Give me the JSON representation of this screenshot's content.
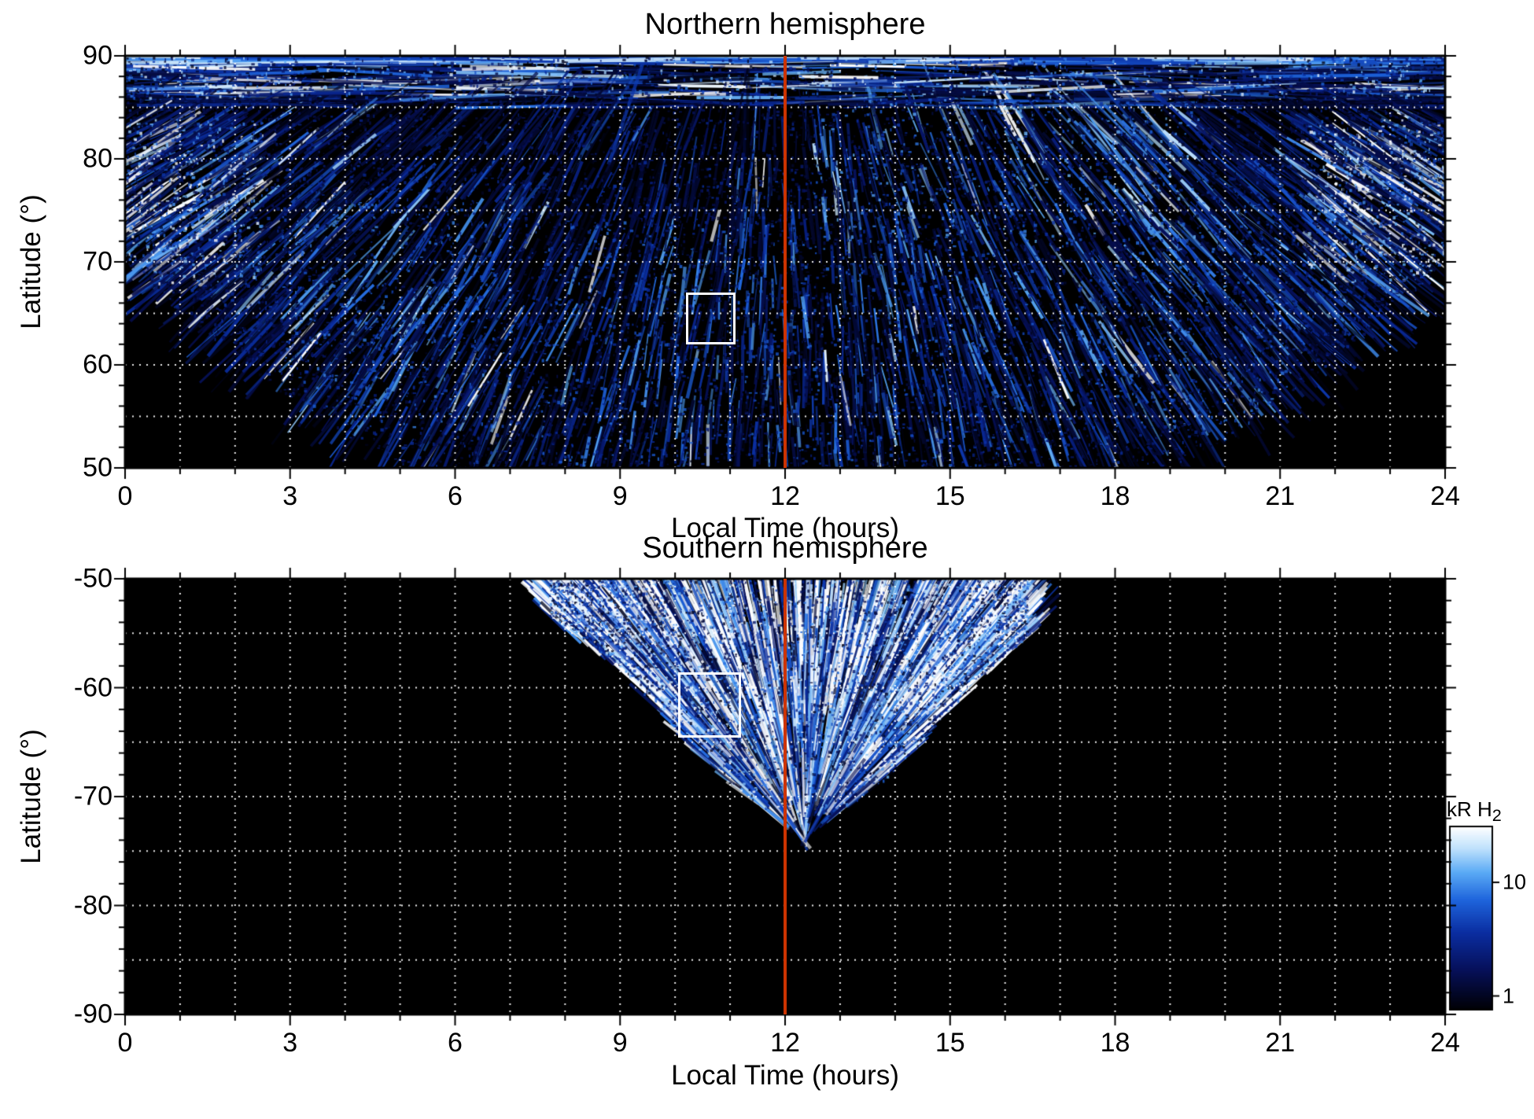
{
  "figure": {
    "x_axis_label": "Local Time (hours)",
    "y_axis_label": "Latitude (°)",
    "x_tick_labels": [
      "0",
      "3",
      "6",
      "9",
      "12",
      "15",
      "18",
      "21",
      "24"
    ],
    "panels": {
      "north": {
        "title": "Northern hemisphere",
        "y_tick_labels": [
          "90",
          "80",
          "70",
          "60",
          "50"
        ]
      },
      "south": {
        "title": "Southern hemisphere",
        "y_tick_labels": [
          "-50",
          "-60",
          "-70",
          "-80",
          "-90"
        ]
      }
    },
    "colorbar": {
      "label_main": "kR H",
      "label_sub": "2",
      "tick_labels": [
        "10",
        "1"
      ]
    },
    "colors": {
      "meridian_line": "#cc3300",
      "gridline": "#ffffff",
      "highlight_box": "#ffffff",
      "plot_background": "#000000",
      "figure_background": "#ffffff"
    }
  },
  "chart_data": {
    "type": "heatmap",
    "quantity": "H2 auroral emission brightness",
    "units": "kR H2",
    "x_axis": {
      "label": "Local Time (hours)",
      "range": [
        0,
        24
      ],
      "major_ticks": [
        0,
        3,
        6,
        9,
        12,
        15,
        18,
        21,
        24
      ],
      "minor_tick_interval": 1
    },
    "color_scale": {
      "type": "log",
      "min_kR": 0.8,
      "max_kR": 30,
      "colormap": "black-blue-white",
      "labeled_ticks": [
        10,
        1
      ]
    },
    "grid": {
      "style": "white dotted",
      "x_interval_hours": 1,
      "y_interval_deg": 5
    },
    "panels": [
      {
        "title": "Northern hemisphere",
        "y_axis": {
          "label": "Latitude (°)",
          "range": [
            50,
            90
          ],
          "major_ticks": [
            90,
            80,
            70,
            60,
            50
          ]
        },
        "data_coverage": {
          "description": "Patchy streaked emission at all local times poleward of ~70°; coverage extends down to 50° between ~5h and ~19h; no data (black) in the lower corners near midnight",
          "equatorward_boundary_lat_by_hour": [
            70,
            66,
            62,
            58,
            54,
            51,
            50,
            50,
            50,
            50,
            50,
            50,
            50,
            50,
            50,
            50,
            50,
            50,
            50,
            50,
            52,
            56,
            61,
            66,
            70
          ]
        },
        "features": [
          "bright band 86-90° at all local times",
          "bright white patches near 0h and 24h at 70-82°",
          "bright patches 13-19h at 72-86°",
          "dense speckled emission ~1-30 kR on dayside 50-75°"
        ],
        "highlight_box": {
          "local_time_hours": [
            10.2,
            11.15
          ],
          "latitude_deg": [
            61.8,
            67.2
          ]
        },
        "noon_meridian_line_hour": 12
      },
      {
        "title": "Southern hemisphere",
        "y_axis": {
          "label": "Latitude (°)",
          "range": [
            -90,
            -50
          ],
          "major_ticks": [
            -50,
            -60,
            -70,
            -80,
            -90
          ]
        },
        "data_coverage": {
          "description": "Emission only within a fan between ~8h and ~16h local time, reaching from -50° down to ~-71° near 12.5h; everywhere else no data (black)",
          "equatorward_boundary_lat_by_hour": {
            "8": -54,
            "9": -58,
            "10": -62,
            "11": -67,
            "12": -70,
            "13": -71,
            "14": -66,
            "15": -61,
            "16": -55
          }
        },
        "features": [
          "radial bright streaks converging toward ~12.3h, -72°",
          "brightest emission -55° to -63° around 10-14h"
        ],
        "highlight_box": {
          "local_time_hours": [
            10.05,
            11.2
          ],
          "latitude_deg": [
            -64.6,
            -58.6
          ]
        },
        "noon_meridian_line_hour": 12
      }
    ]
  }
}
